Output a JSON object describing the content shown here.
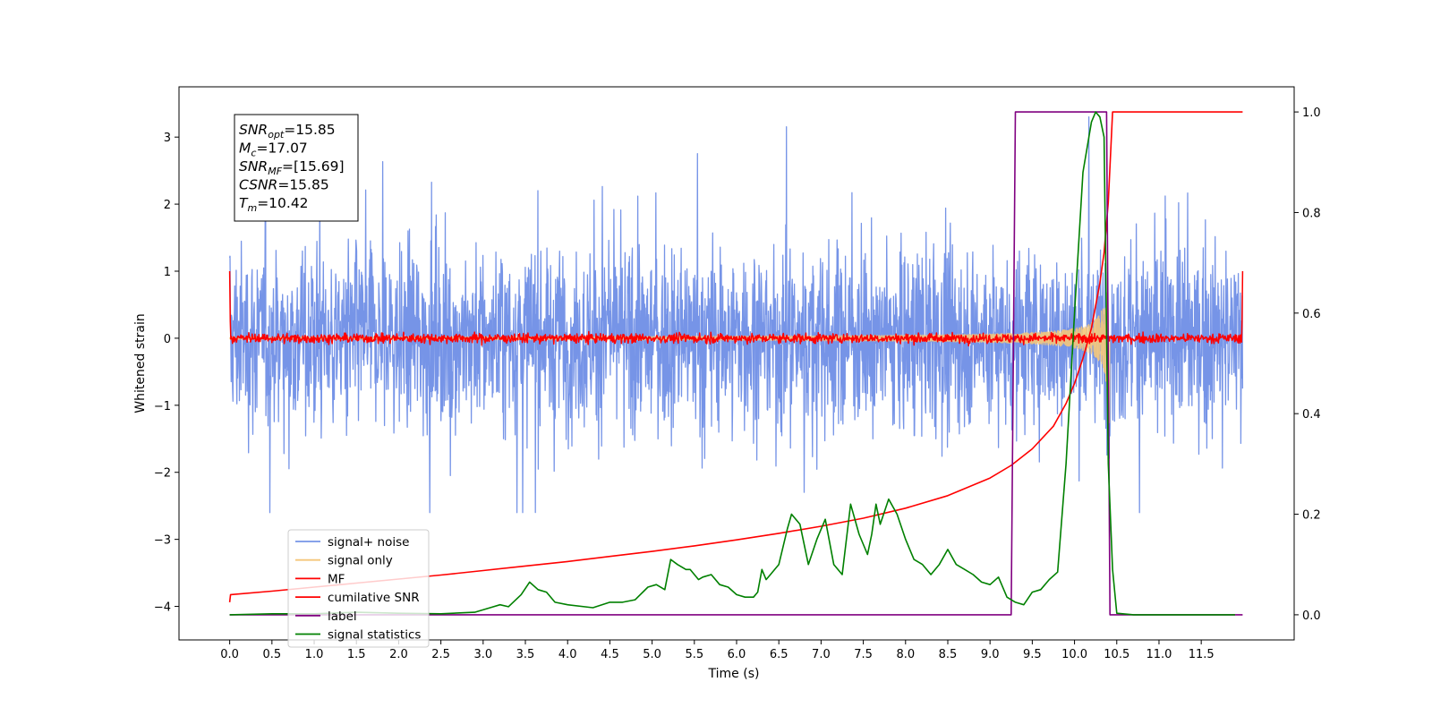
{
  "chart_data": {
    "type": "line",
    "xlabel": "Time (s)",
    "ylabel": "Whitened strain",
    "xlim": [
      -0.6,
      12.6
    ],
    "ylim_left": [
      -4.5,
      3.75
    ],
    "ylim_right": [
      -0.05,
      1.05
    ],
    "xticks": [
      0.0,
      0.5,
      1.0,
      1.5,
      2.0,
      2.5,
      3.0,
      3.5,
      4.0,
      4.5,
      5.0,
      5.5,
      6.0,
      6.5,
      7.0,
      7.5,
      8.0,
      8.5,
      9.0,
      9.5,
      10.0,
      10.5,
      11.0,
      11.5
    ],
    "xtick_labels": [
      "0.0",
      "0.5",
      "1.0",
      "1.5",
      "2.0",
      "2.5",
      "3.0",
      "3.5",
      "4.0",
      "4.5",
      "5.0",
      "5.5",
      "6.0",
      "6.5",
      "7.0",
      "7.5",
      "8.0",
      "8.5",
      "9.0",
      "9.5",
      "10.0",
      "10.5",
      "11.0",
      "11.5"
    ],
    "yticks_left": [
      -4,
      -3,
      -2,
      -1,
      0,
      1,
      2,
      3
    ],
    "ytick_labels_left": [
      "−4",
      "−3",
      "−2",
      "−1",
      "0",
      "1",
      "2",
      "3"
    ],
    "yticks_right": [
      0.0,
      0.2,
      0.4,
      0.6,
      0.8,
      1.0
    ],
    "ytick_labels_right": [
      "0.0",
      "0.2",
      "0.4",
      "0.6",
      "0.8",
      "1.0"
    ],
    "annotation": [
      {
        "base": "SNR",
        "sub": "opt",
        "value": "=15.85"
      },
      {
        "base": "M",
        "sub": "c",
        "value": "=17.07"
      },
      {
        "base": "SNR",
        "sub": "MF",
        "value": "=[15.69]"
      },
      {
        "base": "CSNR",
        "sub": "",
        "value": "=15.85"
      },
      {
        "base": "T",
        "sub": "m",
        "value": "=10.42"
      }
    ],
    "legend_position": "lower-left",
    "series": [
      {
        "name": "signal+ noise",
        "color": "#6f8ee6",
        "axis": "left",
        "kind": "noise",
        "t_range": [
          0.0,
          11.99
        ],
        "amplitude_sigma": 0.95,
        "envelope": [
          -2.6,
          3.3
        ]
      },
      {
        "name": "signal only",
        "color": "#f5c67a",
        "axis": "left",
        "kind": "chirp",
        "t_range": [
          0.0,
          10.42
        ],
        "peak_amplitude": 1.4,
        "merger_time": 10.42
      },
      {
        "name": "MF",
        "color": "#ff0000",
        "axis": "left",
        "kind": "noise",
        "t_range": [
          0.0,
          11.99
        ],
        "amplitude_sigma": 0.05,
        "edge_values": [
          1.0,
          1.0
        ]
      },
      {
        "name": "cumilative SNR",
        "color": "#ff0000",
        "axis": "right",
        "x": [
          0.0,
          0.01,
          0.5,
          1.0,
          1.5,
          2.0,
          2.5,
          3.0,
          3.5,
          4.0,
          4.5,
          5.0,
          5.5,
          6.0,
          6.5,
          7.0,
          7.5,
          8.0,
          8.5,
          9.0,
          9.25,
          9.5,
          9.75,
          9.9,
          10.0,
          10.1,
          10.2,
          10.3,
          10.35,
          10.4,
          10.45,
          11.99
        ],
        "y": [
          0.025,
          0.04,
          0.047,
          0.055,
          0.063,
          0.071,
          0.079,
          0.088,
          0.097,
          0.106,
          0.116,
          0.126,
          0.137,
          0.149,
          0.162,
          0.176,
          0.192,
          0.212,
          0.237,
          0.272,
          0.297,
          0.33,
          0.375,
          0.42,
          0.46,
          0.51,
          0.57,
          0.66,
          0.72,
          0.82,
          1.0,
          1.0
        ]
      },
      {
        "name": "label",
        "color": "#800080",
        "axis": "right",
        "x": [
          0.0,
          9.25,
          9.3,
          10.38,
          10.42,
          11.99
        ],
        "y": [
          0.0,
          0.0,
          1.0,
          1.0,
          0.0,
          0.0
        ]
      },
      {
        "name": "signal statistics",
        "color": "#008000",
        "axis": "right",
        "x": [
          0.0,
          0.5,
          1.0,
          1.5,
          2.0,
          2.5,
          2.9,
          3.1,
          3.2,
          3.3,
          3.45,
          3.55,
          3.65,
          3.75,
          3.85,
          4.0,
          4.3,
          4.5,
          4.65,
          4.8,
          4.95,
          5.05,
          5.15,
          5.22,
          5.3,
          5.4,
          5.45,
          5.55,
          5.6,
          5.7,
          5.8,
          5.9,
          6.0,
          6.1,
          6.2,
          6.25,
          6.3,
          6.35,
          6.4,
          6.5,
          6.6,
          6.65,
          6.75,
          6.85,
          6.95,
          7.05,
          7.15,
          7.25,
          7.35,
          7.45,
          7.55,
          7.6,
          7.65,
          7.7,
          7.8,
          7.9,
          8.0,
          8.1,
          8.2,
          8.3,
          8.4,
          8.5,
          8.6,
          8.7,
          8.8,
          8.9,
          9.0,
          9.1,
          9.2,
          9.3,
          9.4,
          9.5,
          9.6,
          9.7,
          9.8,
          9.9,
          10.0,
          10.1,
          10.2,
          10.25,
          10.3,
          10.35,
          10.4,
          10.45,
          10.5,
          10.7,
          11.0,
          11.5,
          11.9
        ],
        "y": [
          0.0,
          0.002,
          0.002,
          0.005,
          0.003,
          0.002,
          0.005,
          0.015,
          0.02,
          0.016,
          0.04,
          0.065,
          0.05,
          0.045,
          0.025,
          0.02,
          0.014,
          0.025,
          0.025,
          0.03,
          0.055,
          0.06,
          0.05,
          0.11,
          0.1,
          0.09,
          0.09,
          0.07,
          0.075,
          0.08,
          0.06,
          0.055,
          0.04,
          0.035,
          0.035,
          0.045,
          0.09,
          0.07,
          0.08,
          0.1,
          0.17,
          0.2,
          0.18,
          0.1,
          0.15,
          0.19,
          0.1,
          0.08,
          0.22,
          0.16,
          0.12,
          0.16,
          0.22,
          0.18,
          0.23,
          0.2,
          0.15,
          0.11,
          0.1,
          0.08,
          0.1,
          0.13,
          0.1,
          0.09,
          0.08,
          0.065,
          0.06,
          0.075,
          0.035,
          0.025,
          0.02,
          0.045,
          0.05,
          0.07,
          0.085,
          0.3,
          0.6,
          0.88,
          0.98,
          1.0,
          0.99,
          0.95,
          0.3,
          0.09,
          0.003,
          0.0,
          0.0,
          0.0,
          0.0
        ]
      }
    ]
  }
}
